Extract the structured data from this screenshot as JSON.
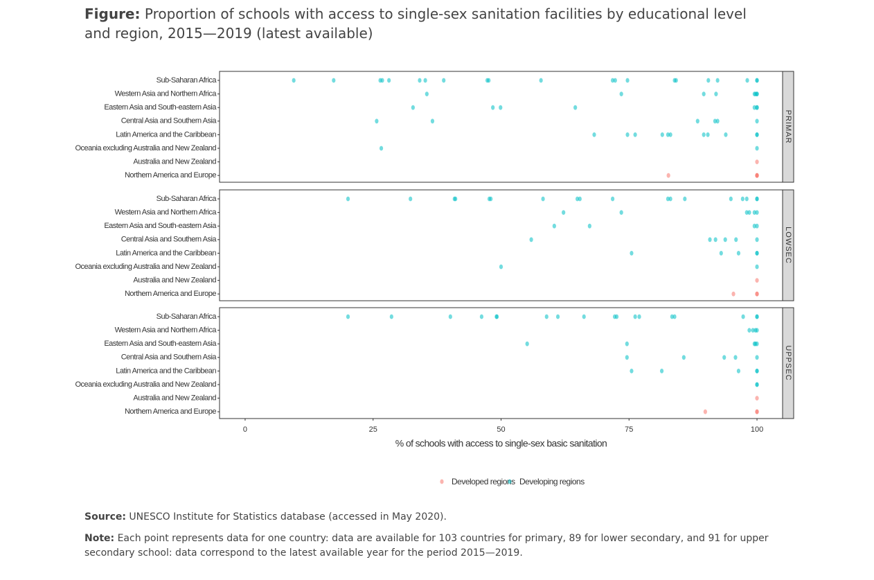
{
  "chart_data": {
    "type": "strip",
    "title_label": "Figure:",
    "title": "Proportion of schools with access to single-sex sanitation facilities by educational level and region, 2015—2019 (latest available)",
    "xlabel": "% of schools with access to single-sex basic sanitation",
    "xlim": [
      -5,
      105
    ],
    "xticks": [
      0,
      25,
      50,
      75,
      100
    ],
    "categories": [
      "Sub-Saharan Africa",
      "Western Asia and Northern Africa",
      "Eastern Asia and South-eastern Asia",
      "Central Asia and Southern Asia",
      "Latin America and the Caribbean",
      "Oceania excluding Australia and New Zealand",
      "Australia and New Zealand",
      "Northern America and Europe"
    ],
    "panels": [
      "PRIMAR",
      "LOWSEC",
      "UPPSEC"
    ],
    "series": [
      {
        "name": "Developed regions",
        "color": "#f8766d",
        "values": [
          [
            [],
            [],
            [],
            [],
            [],
            [],
            [
              100
            ],
            [
              82.7,
              100,
              100,
              100
            ]
          ],
          [
            [],
            [],
            [],
            [],
            [],
            [],
            [
              100
            ],
            [
              95.4,
              100,
              100
            ]
          ],
          [
            [],
            [],
            [],
            [],
            [],
            [],
            [
              100
            ],
            [
              89.9,
              100,
              100
            ]
          ]
        ]
      },
      {
        "name": "Developing regions",
        "color": "#00bfc4",
        "values": [
          [
            [
              9.5,
              17.3,
              26.4,
              26.8,
              28.1,
              34.1,
              35.2,
              38.8,
              47.3,
              47.6,
              57.8,
              71.8,
              72.3,
              74.7,
              83.9,
              84.2,
              90.5,
              92.3,
              98.1,
              100,
              100
            ],
            [
              35.5,
              73.5,
              89.6,
              92,
              99.5,
              99.7,
              100,
              100
            ],
            [
              32.8,
              48.4,
              49.9,
              64.5,
              99.5,
              100,
              100
            ],
            [
              25.7,
              36.6,
              88.4,
              91.8,
              92.3,
              100
            ],
            [
              68.2,
              74.7,
              76.2,
              81.5,
              82.6,
              83.1,
              89.6,
              90.4,
              93.9,
              100,
              100
            ],
            [
              26.6,
              100
            ],
            [],
            []
          ],
          [
            [
              20.1,
              32.3,
              40.9,
              41.1,
              47.7,
              48,
              58.2,
              64.9,
              65.4,
              71.8,
              82.6,
              83.1,
              85.9,
              94.9,
              97.2,
              98,
              100,
              100
            ],
            [
              62.2,
              73.5,
              98,
              98.5,
              99.5,
              100
            ],
            [
              60.4,
              67.3,
              99.5,
              100
            ],
            [
              55.9,
              90.8,
              91.9,
              93.8,
              95.9,
              100
            ],
            [
              75.5,
              93,
              96.4,
              100,
              100
            ],
            [
              50,
              100
            ],
            [],
            []
          ],
          [
            [
              20.1,
              28.6,
              40.1,
              46.2,
              49.1,
              49.2,
              58.9,
              61.1,
              66.2,
              72.2,
              72.6,
              76.2,
              77,
              83.4,
              83.9,
              97.3,
              100,
              100
            ],
            [
              98.5,
              99.2,
              99.7,
              100
            ],
            [
              55.1,
              74.6,
              99.5,
              99.7,
              100
            ],
            [
              74.6,
              85.7,
              93.6,
              95.8,
              100
            ],
            [
              75.5,
              81.4,
              96.4,
              100,
              100
            ],
            [
              100,
              100
            ],
            [],
            []
          ]
        ]
      }
    ],
    "source_label": "Source:",
    "source": "UNESCO Institute for Statistics database (accessed in May 2020).",
    "note_label": "Note:",
    "note": "Each point represents data for one country: data are available for 103 countries for primary, 89 for lower secondary, and 91 for upper secondary school: data correspond to the latest available year for the period 2015—2019."
  }
}
